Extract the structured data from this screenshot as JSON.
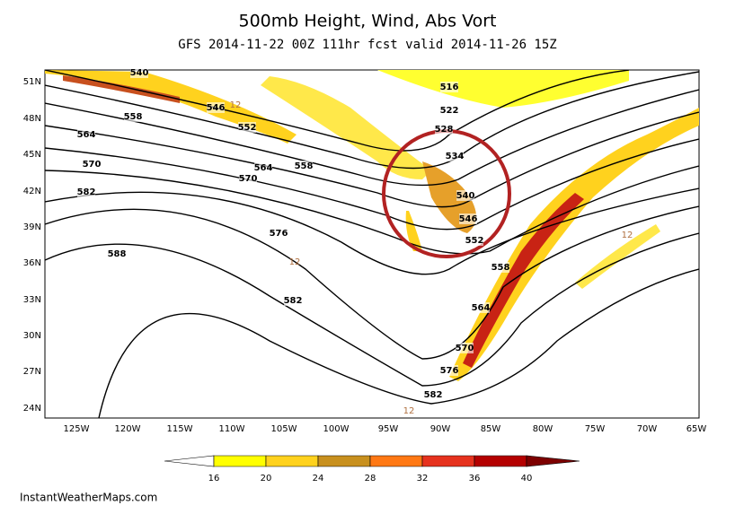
{
  "header": {
    "title": "500mb Height, Wind, Abs Vort",
    "subtitle": "GFS 2014-11-22 00Z 111hr fcst valid 2014-11-26 15Z"
  },
  "map": {
    "lat_labels": [
      "51N",
      "48N",
      "45N",
      "42N",
      "39N",
      "36N",
      "33N",
      "30N",
      "27N",
      "24N"
    ],
    "lon_labels": [
      "125W",
      "120W",
      "115W",
      "110W",
      "105W",
      "100W",
      "95W",
      "90W",
      "85W",
      "80W",
      "75W",
      "70W",
      "65W"
    ],
    "height_labels": [
      540,
      546,
      552,
      558,
      564,
      570,
      582,
      588,
      564,
      570,
      558,
      576,
      582,
      516,
      522,
      528,
      534,
      540,
      546,
      552,
      558,
      564,
      570,
      576,
      582
    ],
    "vort_labels": [
      12,
      12,
      12,
      12
    ]
  },
  "colorbar": {
    "labels": [
      16,
      20,
      24,
      28,
      32,
      36,
      40
    ],
    "colors": [
      "#ffffff",
      "#ffff00",
      "#ffd21e",
      "#c8901e",
      "#ff7814",
      "#e6321e",
      "#b40000",
      "#7d0000"
    ]
  },
  "footer": "InstantWeatherMaps.com"
}
